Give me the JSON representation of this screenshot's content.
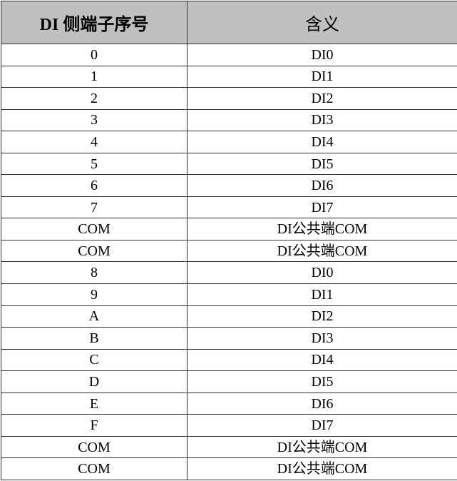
{
  "table": {
    "headers": [
      "DI 侧端子序号",
      "含义"
    ],
    "rows": [
      [
        "0",
        "DI0"
      ],
      [
        "1",
        "DI1"
      ],
      [
        "2",
        "DI2"
      ],
      [
        "3",
        "DI3"
      ],
      [
        "4",
        "DI4"
      ],
      [
        "5",
        "DI5"
      ],
      [
        "6",
        "DI6"
      ],
      [
        "7",
        "DI7"
      ],
      [
        "COM",
        "DI公共端COM"
      ],
      [
        "COM",
        "DI公共端COM"
      ],
      [
        "8",
        "DI0"
      ],
      [
        "9",
        "DI1"
      ],
      [
        "A",
        "DI2"
      ],
      [
        "B",
        "DI3"
      ],
      [
        "C",
        "DI4"
      ],
      [
        "D",
        "DI5"
      ],
      [
        "E",
        "DI6"
      ],
      [
        "F",
        "DI7"
      ],
      [
        "COM",
        "DI公共端COM"
      ],
      [
        "COM",
        "DI公共端COM"
      ]
    ]
  },
  "colors": {
    "header_bg": "#c0c0c0",
    "border": "#333333"
  }
}
